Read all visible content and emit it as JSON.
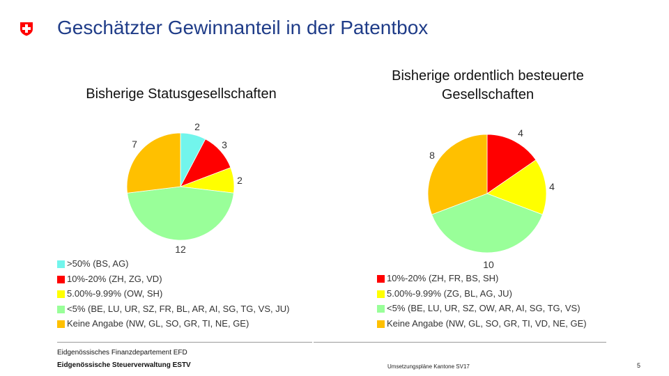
{
  "header": {
    "title": "Geschätzter Gewinnanteil in der Patentbox"
  },
  "colors": {
    "title": "#1f3c88",
    "logo_red": "#ff0000",
    "cyan": "#72f5ec",
    "red": "#ff0000",
    "yellow": "#ffff00",
    "green": "#99ff99",
    "orange": "#ffc000"
  },
  "chart_data": [
    {
      "type": "pie",
      "title": "Bisherige Statusgesellschaften",
      "slices": [
        {
          "label": ">50% (BS, AG)",
          "value": 2,
          "color": "#72f5ec"
        },
        {
          "label": "10%-20% (ZH, ZG, VD)",
          "value": 3,
          "color": "#ff0000"
        },
        {
          "label": "5.00%-9.99% (OW, SH)",
          "value": 2,
          "color": "#ffff00"
        },
        {
          "label": "<5% (BE, LU, UR, SZ, FR, BL, AR, AI, SG, TG, VS, JU)",
          "value": 12,
          "color": "#99ff99"
        },
        {
          "label": "Keine Angabe (NW, GL, SO, GR, TI, NE, GE)",
          "value": 7,
          "color": "#ffc000"
        }
      ]
    },
    {
      "type": "pie",
      "title": "Bisherige ordentlich besteuerte Gesellschaften",
      "slices": [
        {
          "label": "10%-20% (ZH, FR, BS, SH)",
          "value": 4,
          "color": "#ff0000"
        },
        {
          "label": "5.00%-9.99% (ZG, BL, AG, JU)",
          "value": 4,
          "color": "#ffff00"
        },
        {
          "label": "<5% (BE, LU, UR, SZ, OW, AR, AI, SG, TG, VS)",
          "value": 10,
          "color": "#99ff99"
        },
        {
          "label": "Keine Angabe (NW, GL, SO, GR, TI, VD, NE, GE)",
          "value": 8,
          "color": "#ffc000"
        }
      ]
    }
  ],
  "footer": {
    "department": "Eidgenössisches Finanzdepartement EFD",
    "administration": "Eidgenössische Steuerverwaltung ESTV",
    "topic": "Umsetzungspläne Kantone SV17",
    "page": "5"
  }
}
